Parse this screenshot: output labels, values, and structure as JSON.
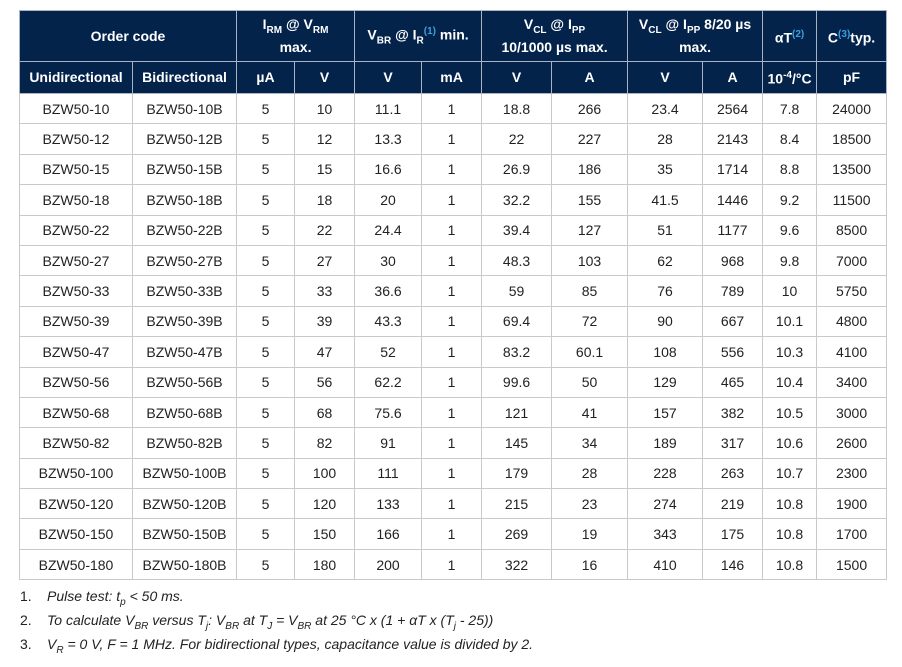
{
  "header": {
    "row1": [
      {
        "span": 2,
        "parts": [
          [
            "t",
            "Order code"
          ]
        ]
      },
      {
        "span": 2,
        "parts": [
          [
            "t",
            "I"
          ],
          [
            "sub",
            "RM"
          ],
          [
            "t",
            " @ V"
          ],
          [
            "sub",
            "RM"
          ],
          [
            "br",
            ""
          ],
          [
            "t",
            "max."
          ]
        ]
      },
      {
        "span": 2,
        "parts": [
          [
            "t",
            "V"
          ],
          [
            "sub",
            "BR"
          ],
          [
            "t",
            " @ I"
          ],
          [
            "sub",
            "R"
          ],
          [
            "ref",
            "(1)"
          ],
          [
            "t",
            " min."
          ]
        ]
      },
      {
        "span": 2,
        "parts": [
          [
            "t",
            "V"
          ],
          [
            "sub",
            "CL"
          ],
          [
            "t",
            " @ I"
          ],
          [
            "sub",
            "PP"
          ],
          [
            "br",
            ""
          ],
          [
            "t",
            "10/1000 µs max."
          ]
        ]
      },
      {
        "span": 2,
        "parts": [
          [
            "t",
            "V"
          ],
          [
            "sub",
            "CL"
          ],
          [
            "t",
            " @ I"
          ],
          [
            "sub",
            "PP"
          ],
          [
            "t",
            " 8/20 µs"
          ],
          [
            "br",
            ""
          ],
          [
            "t",
            "max."
          ]
        ]
      },
      {
        "span": 1,
        "parts": [
          [
            "t",
            "αT"
          ],
          [
            "ref",
            "(2)"
          ]
        ]
      },
      {
        "span": 1,
        "parts": [
          [
            "t",
            "C"
          ],
          [
            "ref",
            "(3)"
          ],
          [
            "t",
            "typ."
          ]
        ]
      }
    ],
    "row2": [
      [
        [
          "t",
          "Unidirectional"
        ]
      ],
      [
        [
          "t",
          "Bidirectional"
        ]
      ],
      [
        [
          "t",
          "µA"
        ]
      ],
      [
        [
          "t",
          "V"
        ]
      ],
      [
        [
          "t",
          "V"
        ]
      ],
      [
        [
          "t",
          "mA"
        ]
      ],
      [
        [
          "t",
          "V"
        ]
      ],
      [
        [
          "t",
          "A"
        ]
      ],
      [
        [
          "t",
          "V"
        ]
      ],
      [
        [
          "t",
          "A"
        ]
      ],
      [
        [
          "t",
          "10"
        ],
        [
          "sup",
          "-4"
        ],
        [
          "t",
          "/°C"
        ]
      ],
      [
        [
          "t",
          "pF"
        ]
      ]
    ]
  },
  "rows": [
    [
      "BZW50-10",
      "BZW50-10B",
      "5",
      "10",
      "11.1",
      "1",
      "18.8",
      "266",
      "23.4",
      "2564",
      "7.8",
      "24000"
    ],
    [
      "BZW50-12",
      "BZW50-12B",
      "5",
      "12",
      "13.3",
      "1",
      "22",
      "227",
      "28",
      "2143",
      "8.4",
      "18500"
    ],
    [
      "BZW50-15",
      "BZW50-15B",
      "5",
      "15",
      "16.6",
      "1",
      "26.9",
      "186",
      "35",
      "1714",
      "8.8",
      "13500"
    ],
    [
      "BZW50-18",
      "BZW50-18B",
      "5",
      "18",
      "20",
      "1",
      "32.2",
      "155",
      "41.5",
      "1446",
      "9.2",
      "11500"
    ],
    [
      "BZW50-22",
      "BZW50-22B",
      "5",
      "22",
      "24.4",
      "1",
      "39.4",
      "127",
      "51",
      "1177",
      "9.6",
      "8500"
    ],
    [
      "BZW50-27",
      "BZW50-27B",
      "5",
      "27",
      "30",
      "1",
      "48.3",
      "103",
      "62",
      "968",
      "9.8",
      "7000"
    ],
    [
      "BZW50-33",
      "BZW50-33B",
      "5",
      "33",
      "36.6",
      "1",
      "59",
      "85",
      "76",
      "789",
      "10",
      "5750"
    ],
    [
      "BZW50-39",
      "BZW50-39B",
      "5",
      "39",
      "43.3",
      "1",
      "69.4",
      "72",
      "90",
      "667",
      "10.1",
      "4800"
    ],
    [
      "BZW50-47",
      "BZW50-47B",
      "5",
      "47",
      "52",
      "1",
      "83.2",
      "60.1",
      "108",
      "556",
      "10.3",
      "4100"
    ],
    [
      "BZW50-56",
      "BZW50-56B",
      "5",
      "56",
      "62.2",
      "1",
      "99.6",
      "50",
      "129",
      "465",
      "10.4",
      "3400"
    ],
    [
      "BZW50-68",
      "BZW50-68B",
      "5",
      "68",
      "75.6",
      "1",
      "121",
      "41",
      "157",
      "382",
      "10.5",
      "3000"
    ],
    [
      "BZW50-82",
      "BZW50-82B",
      "5",
      "82",
      "91",
      "1",
      "145",
      "34",
      "189",
      "317",
      "10.6",
      "2600"
    ],
    [
      "BZW50-100",
      "BZW50-100B",
      "5",
      "100",
      "111",
      "1",
      "179",
      "28",
      "228",
      "263",
      "10.7",
      "2300"
    ],
    [
      "BZW50-120",
      "BZW50-120B",
      "5",
      "120",
      "133",
      "1",
      "215",
      "23",
      "274",
      "219",
      "10.8",
      "1900"
    ],
    [
      "BZW50-150",
      "BZW50-150B",
      "5",
      "150",
      "166",
      "1",
      "269",
      "19",
      "343",
      "175",
      "10.8",
      "1700"
    ],
    [
      "BZW50-180",
      "BZW50-180B",
      "5",
      "180",
      "200",
      "1",
      "322",
      "16",
      "410",
      "146",
      "10.8",
      "1500"
    ]
  ],
  "notes": [
    {
      "num": "1.",
      "parts": [
        [
          "t",
          "Pulse test: t"
        ],
        [
          "sub",
          "p"
        ],
        [
          "t",
          " < 50 ms."
        ]
      ]
    },
    {
      "num": "2.",
      "parts": [
        [
          "t",
          "To calculate V"
        ],
        [
          "sub",
          "BR"
        ],
        [
          "t",
          " versus T"
        ],
        [
          "sub",
          "j"
        ],
        [
          "t",
          ": V"
        ],
        [
          "sub",
          "BR"
        ],
        [
          "t",
          " at T"
        ],
        [
          "sub",
          "J"
        ],
        [
          "t",
          " = V"
        ],
        [
          "sub",
          "BR"
        ],
        [
          "t",
          " at 25 °C x (1 + αT x (T"
        ],
        [
          "sub",
          "j"
        ],
        [
          "t",
          " - 25))"
        ]
      ]
    },
    {
      "num": "3.",
      "parts": [
        [
          "t",
          "V"
        ],
        [
          "sub",
          "R"
        ],
        [
          "t",
          " = 0 V, F = 1 MHz. For bidirectional types, capacitance value is divided by 2."
        ]
      ]
    }
  ],
  "colors": {
    "header_bg": "#03234b",
    "ref": "#3b9fe0"
  }
}
